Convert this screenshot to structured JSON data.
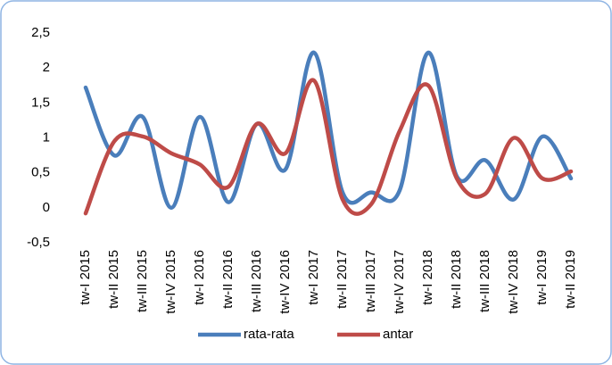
{
  "chart_data": {
    "type": "line",
    "categories": [
      "tw-I 2015",
      "tw-II 2015",
      "tw-III 2015",
      "tw-IV 2015",
      "tw-I 2016",
      "tw-II 2016",
      "tw-III 2016",
      "tw-IV 2016",
      "tw-I 2017",
      "tw-II 2017",
      "tw-III 2017",
      "tw-IV 2017",
      "tw-I 2018",
      "tw-II 2018",
      "tw-III 2018",
      "tw-IV 2018",
      "tw-I 2019",
      "tw-II 2019"
    ],
    "series": [
      {
        "name": "rata-rata",
        "color": "#4a7ebb",
        "values": [
          1.72,
          0.75,
          1.3,
          0.0,
          1.3,
          0.08,
          1.2,
          0.55,
          2.22,
          0.22,
          0.22,
          0.25,
          2.22,
          0.45,
          0.68,
          0.12,
          1.02,
          0.42
        ]
      },
      {
        "name": "antar",
        "color": "#be4b48",
        "values": [
          -0.08,
          0.95,
          1.02,
          0.78,
          0.62,
          0.3,
          1.2,
          0.78,
          1.82,
          0.12,
          0.05,
          1.1,
          1.75,
          0.42,
          0.2,
          1.0,
          0.42,
          0.52
        ]
      }
    ],
    "ylim": [
      -0.5,
      2.5
    ],
    "yticks": [
      {
        "value": -0.5,
        "label": "-0,5"
      },
      0,
      {
        "value": 0.5,
        "label": "0,5"
      },
      1,
      {
        "value": 1.5,
        "label": "1,5"
      },
      2,
      {
        "value": 2.5,
        "label": "2,5"
      }
    ],
    "grid": false,
    "smooth": true,
    "legend": "bottom"
  }
}
